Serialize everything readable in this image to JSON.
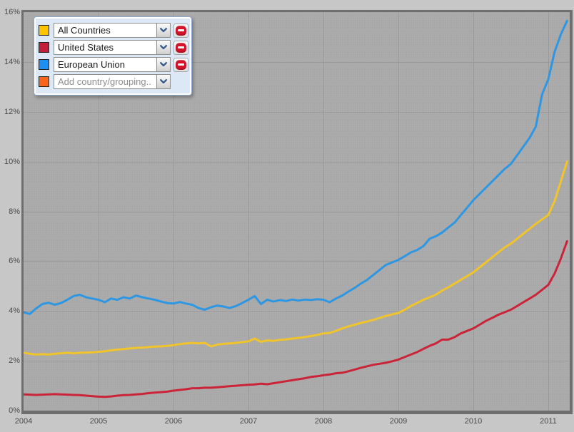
{
  "page": {
    "background_color": "#c7c7c7"
  },
  "legend": {
    "rows": [
      {
        "id": "all-countries",
        "swatch_color": "#fdc500",
        "label": "All Countries",
        "removable": true,
        "placeholder": false
      },
      {
        "id": "united-states",
        "swatch_color": "#c41f3a",
        "label": "United States",
        "removable": true,
        "placeholder": false
      },
      {
        "id": "european-union",
        "swatch_color": "#1e8ff2",
        "label": "European Union",
        "removable": true,
        "placeholder": false
      },
      {
        "id": "add-country",
        "swatch_color": "#f8661c",
        "label": "Add country/grouping..",
        "removable": false,
        "placeholder": true
      }
    ]
  },
  "chart_data": {
    "type": "line",
    "title": "",
    "xlabel": "",
    "ylabel": "",
    "x_frequency": "monthly",
    "x_start": "2004-01",
    "x_end": "2011-04",
    "x_tick_labels": [
      "2004",
      "2005",
      "2006",
      "2007",
      "2008",
      "2009",
      "2010",
      "2011"
    ],
    "y_tick_labels": [
      "0%",
      "2%",
      "4%",
      "6%",
      "8%",
      "10%",
      "12%",
      "14%",
      "16%"
    ],
    "ylim": [
      0,
      16
    ],
    "xlim_years": [
      2004.0,
      2011.33
    ],
    "grid": true,
    "grid_color": "#9a9a9a",
    "plot_background": "#a9a9a9",
    "legend_position": "top-left-panel",
    "series": [
      {
        "name": "All Countries",
        "color": "#f0c42a",
        "values": [
          2.32,
          2.28,
          2.25,
          2.27,
          2.25,
          2.28,
          2.3,
          2.32,
          2.3,
          2.32,
          2.33,
          2.34,
          2.36,
          2.38,
          2.42,
          2.45,
          2.47,
          2.5,
          2.52,
          2.53,
          2.55,
          2.57,
          2.58,
          2.6,
          2.63,
          2.67,
          2.7,
          2.72,
          2.7,
          2.72,
          2.58,
          2.65,
          2.68,
          2.7,
          2.72,
          2.75,
          2.78,
          2.89,
          2.76,
          2.82,
          2.8,
          2.84,
          2.86,
          2.89,
          2.92,
          2.95,
          2.99,
          3.04,
          3.1,
          3.12,
          3.2,
          3.3,
          3.38,
          3.45,
          3.52,
          3.58,
          3.64,
          3.72,
          3.8,
          3.86,
          3.92,
          4.05,
          4.2,
          4.32,
          4.45,
          4.55,
          4.65,
          4.82,
          4.95,
          5.1,
          5.25,
          5.4,
          5.55,
          5.75,
          5.95,
          6.15,
          6.35,
          6.55,
          6.7,
          6.9,
          7.1,
          7.3,
          7.5,
          7.68,
          7.85,
          8.4,
          9.2,
          10.0
        ]
      },
      {
        "name": "United States",
        "color": "#cb2438",
        "values": [
          0.65,
          0.64,
          0.63,
          0.64,
          0.65,
          0.66,
          0.65,
          0.64,
          0.63,
          0.62,
          0.6,
          0.58,
          0.56,
          0.55,
          0.57,
          0.6,
          0.62,
          0.63,
          0.65,
          0.67,
          0.7,
          0.72,
          0.74,
          0.76,
          0.8,
          0.83,
          0.86,
          0.9,
          0.9,
          0.92,
          0.92,
          0.94,
          0.96,
          0.98,
          1.0,
          1.02,
          1.04,
          1.05,
          1.08,
          1.06,
          1.1,
          1.14,
          1.18,
          1.22,
          1.26,
          1.3,
          1.35,
          1.38,
          1.42,
          1.45,
          1.5,
          1.52,
          1.58,
          1.65,
          1.72,
          1.78,
          1.84,
          1.88,
          1.92,
          1.98,
          2.05,
          2.15,
          2.25,
          2.35,
          2.48,
          2.6,
          2.7,
          2.85,
          2.85,
          2.95,
          3.1,
          3.2,
          3.3,
          3.45,
          3.6,
          3.72,
          3.85,
          3.95,
          4.05,
          4.2,
          4.35,
          4.5,
          4.65,
          4.85,
          5.05,
          5.5,
          6.1,
          6.8
        ]
      },
      {
        "name": "European Union",
        "color": "#2e97e3",
        "values": [
          3.95,
          3.88,
          4.1,
          4.28,
          4.33,
          4.25,
          4.32,
          4.45,
          4.6,
          4.65,
          4.55,
          4.5,
          4.45,
          4.35,
          4.5,
          4.45,
          4.55,
          4.5,
          4.62,
          4.55,
          4.5,
          4.45,
          4.38,
          4.32,
          4.3,
          4.36,
          4.3,
          4.25,
          4.12,
          4.05,
          4.15,
          4.22,
          4.18,
          4.12,
          4.2,
          4.32,
          4.45,
          4.6,
          4.28,
          4.45,
          4.38,
          4.44,
          4.4,
          4.46,
          4.42,
          4.46,
          4.44,
          4.47,
          4.45,
          4.35,
          4.5,
          4.62,
          4.78,
          4.93,
          5.1,
          5.25,
          5.45,
          5.65,
          5.85,
          5.95,
          6.05,
          6.2,
          6.35,
          6.45,
          6.6,
          6.9,
          7.0,
          7.15,
          7.35,
          7.55,
          7.85,
          8.15,
          8.45,
          8.7,
          8.95,
          9.2,
          9.45,
          9.7,
          9.9,
          10.25,
          10.6,
          10.95,
          11.4,
          12.7,
          13.3,
          14.4,
          15.1,
          15.65
        ]
      }
    ]
  }
}
